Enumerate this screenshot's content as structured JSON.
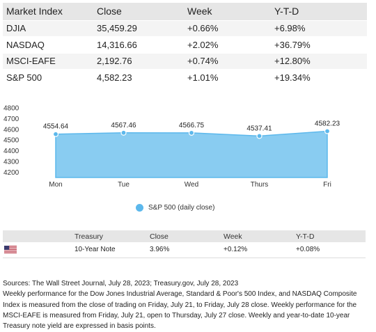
{
  "market_table": {
    "headers": [
      "Market Index",
      "Close",
      "Week",
      "Y-T-D"
    ],
    "rows": [
      [
        "DJIA",
        "35,459.29",
        "+0.66%",
        "+6.98%"
      ],
      [
        "NASDAQ",
        "14,316.66",
        "+2.02%",
        "+36.79%"
      ],
      [
        "MSCI-EAFE",
        "2,192.76",
        "+0.74%",
        "+12.80%"
      ],
      [
        "S&P 500",
        "4,582.23",
        "+1.01%",
        "+19.34%"
      ]
    ]
  },
  "chart_data": {
    "type": "area",
    "categories": [
      "Mon",
      "Tue",
      "Wed",
      "Thurs",
      "Fri"
    ],
    "series": [
      {
        "name": "S&P 500 (daily close)",
        "values": [
          4554.64,
          4567.46,
          4566.75,
          4537.41,
          4582.23
        ],
        "color": "#5cb8ec"
      }
    ],
    "data_labels": [
      "4554.64",
      "4567.46",
      "4566.75",
      "4537.41",
      "4582.23"
    ],
    "yticks": [
      "4800",
      "4700",
      "4600",
      "4500",
      "4400",
      "4300",
      "4200"
    ],
    "ylim": [
      4150,
      4800
    ],
    "legend_position": "bottom",
    "grid": false
  },
  "treasury_table": {
    "headers": [
      "",
      "Treasury",
      "Close",
      "Week",
      "Y-T-D"
    ],
    "rows": [
      {
        "flag_icon": "us-flag-icon",
        "name": "10-Year Note",
        "close": "3.96%",
        "week": "+0.12%",
        "ytd": "+0.08%"
      }
    ]
  },
  "notes": {
    "sources": "Sources: The Wall Street Journal, July 28, 2023; Treasury.gov, July 28, 2023",
    "body": "Weekly performance for the Dow Jones Industrial Average, Standard & Poor's 500 Index, and NASDAQ Composite Index is measured from the close of trading on Friday, July 21, to Friday, July 28 close. Weekly performance for the MSCI-EAFE is measured from Friday, July 21, open to Thursday, July 27 close. Weekly and year-to-date 10-year Treasury note yield are expressed in basis points."
  }
}
